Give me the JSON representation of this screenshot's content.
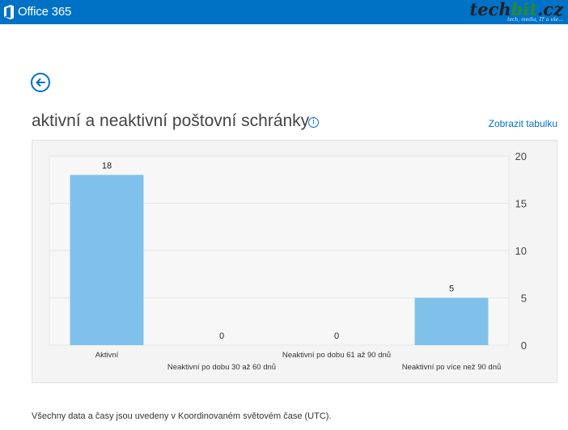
{
  "header": {
    "app_title": "Office 365",
    "watermark_brand": "techbit.cz",
    "watermark_tagline": "tech, media, IT a vše..."
  },
  "page": {
    "title": "aktivní a neaktivní poštovní schránky",
    "info_icon": "info-icon",
    "show_table_link": "Zobrazit tabulku",
    "back_icon": "arrow-left-icon"
  },
  "chart_data": {
    "type": "bar",
    "categories": [
      "Aktivní",
      "Neaktivní po dobu 30 až 60 dnů",
      "Neaktivní po dobu 61 až 90 dnů",
      "Neaktivní po více než 90 dnů"
    ],
    "values": [
      18,
      0,
      0,
      5
    ],
    "data_labels": [
      "18",
      "0",
      "0",
      "5"
    ],
    "ylim": [
      0,
      20
    ],
    "y_ticks": [
      0,
      5,
      10,
      15,
      20
    ],
    "y_axis_position": "right",
    "grid": true,
    "bar_color": "#7fc1ea",
    "title": "",
    "xlabel": "",
    "ylabel": ""
  },
  "footer": {
    "note": "Všechny data a časy jsou uvedeny v Koordinovaném světovém čase (UTC)."
  },
  "colors": {
    "accent": "#0072c6",
    "panel_background": "#f4f4f4"
  }
}
